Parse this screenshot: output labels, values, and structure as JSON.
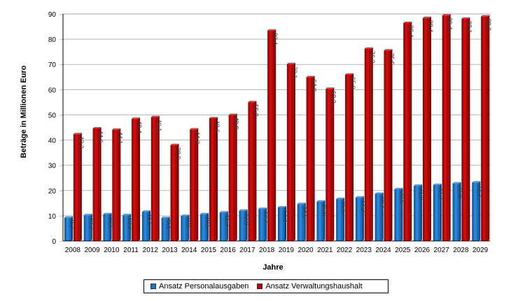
{
  "chart_data": {
    "type": "bar",
    "xlabel": "Jahre",
    "ylabel": "Beträge in Millionen Euro",
    "ylim": [
      0,
      90
    ],
    "yticks": [
      0,
      10,
      20,
      30,
      40,
      50,
      60,
      70,
      80,
      90
    ],
    "grid": true,
    "legend_position": "bottom",
    "categories": [
      "2008",
      "2009",
      "2010",
      "2011",
      "2012",
      "2013",
      "2014",
      "2015",
      "2016",
      "2017",
      "2018",
      "2019",
      "2020",
      "2021",
      "2022",
      "2023",
      "2024",
      "2025",
      "2026",
      "2027",
      "2028",
      "2029"
    ],
    "series": [
      {
        "name": "Ansatz Personalausgaben",
        "color": "#1e78c8",
        "values": [
          9.2,
          10.2,
          10.6,
          10.2,
          11.6,
          9.1,
          9.9,
          10.6,
          11.3,
          12.0,
          12.7,
          13.3,
          14.6,
          15.6,
          16.6,
          17.2,
          18.7,
          20.5,
          21.9,
          22.2,
          22.8,
          23.2
        ],
        "labels": [
          "9,2",
          "10,2",
          "10,6",
          "10,2",
          "11,6",
          "9,1",
          "9,9",
          "10,6",
          "11,3",
          "12,0",
          "12,7",
          "13,3",
          "14,6",
          "15,6",
          "16,6",
          "17,2",
          "18,7",
          "20,5",
          "21,9",
          "22,2",
          "22,8",
          "23,2"
        ]
      },
      {
        "name": "Ansatz Verwaltungshaushalt",
        "color": "#c00000",
        "values": [
          42.3,
          44.6,
          44.1,
          48.4,
          49.1,
          38.0,
          44.2,
          48.6,
          49.9,
          55.0,
          83.4,
          70.1,
          64.9,
          60.3,
          65.9,
          76.2,
          75.5,
          86.4,
          88.4,
          89.4,
          88.1,
          89.0
        ],
        "labels": [
          "42,3",
          "44,6",
          "44,1",
          "48,4",
          "49,1",
          "38,0",
          "44,2",
          "48,6",
          "49,9",
          "55,0",
          "83,4",
          "70,1",
          "64,9",
          "60,3",
          "65,9",
          "76,2",
          "75,5",
          "86,4",
          "88,4",
          "89,4",
          "88,1",
          "89,0"
        ]
      }
    ]
  }
}
